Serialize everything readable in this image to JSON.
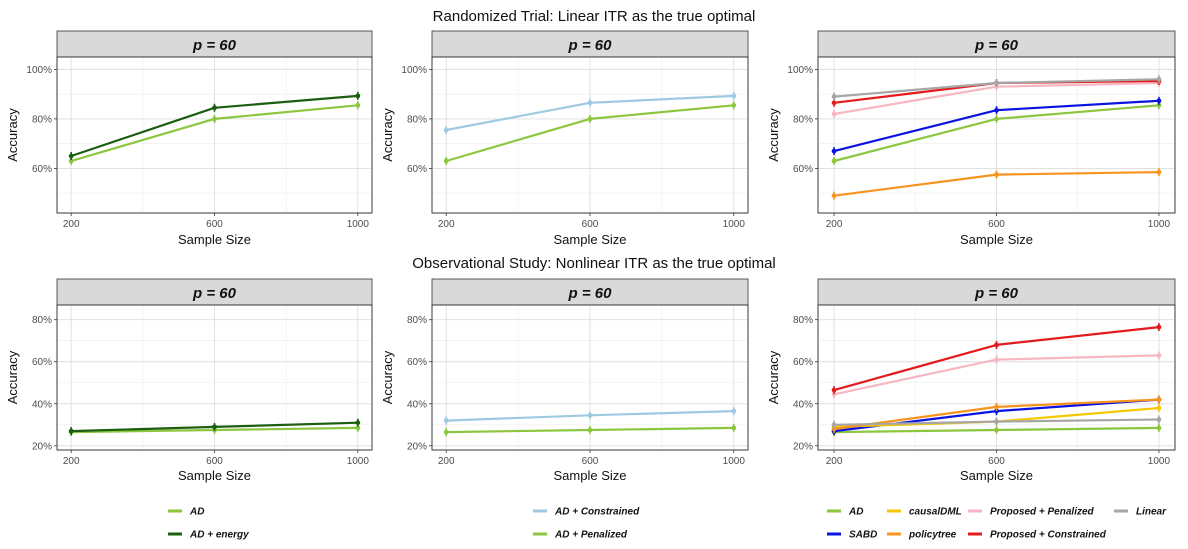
{
  "titles": {
    "top": "Randomized Trial: Linear ITR as the true optimal",
    "bottom": "Observational Study: Nonlinear ITR as the true optimal"
  },
  "colors": {
    "AD": "#8cc63f",
    "AD + energy": "#1b5e10",
    "AD + Constrained": "#9ecae1",
    "AD + Penalized": "#8cc63f",
    "SABD": "#0a14e0",
    "causalDML": "#f5c800",
    "policytree": "#f7941d",
    "Proposed + Penalized": "#f7b6c2",
    "Proposed + Constrained": "#e41a1c",
    "Linear": "#a6a6a6"
  },
  "chart_data": [
    {
      "type": "line",
      "panel": "top-1",
      "strip": "p = 60",
      "xlabel": "Sample Size",
      "ylabel": "Accuracy",
      "x": [
        200,
        600,
        1000
      ],
      "xticks": [
        "200",
        "600",
        "1000"
      ],
      "ylim": [
        0.42,
        1.05
      ],
      "yticks": [
        0.6,
        0.8,
        1.0
      ],
      "ytick_labels": [
        "60%",
        "80%",
        "100%"
      ],
      "series": [
        {
          "name": "AD",
          "values": [
            0.63,
            0.8,
            0.855
          ]
        },
        {
          "name": "AD + energy",
          "values": [
            0.65,
            0.845,
            0.893
          ]
        }
      ]
    },
    {
      "type": "line",
      "panel": "top-2",
      "strip": "p = 60",
      "xlabel": "Sample Size",
      "ylabel": "Accuracy",
      "x": [
        200,
        600,
        1000
      ],
      "xticks": [
        "200",
        "600",
        "1000"
      ],
      "ylim": [
        0.42,
        1.05
      ],
      "yticks": [
        0.6,
        0.8,
        1.0
      ],
      "ytick_labels": [
        "60%",
        "80%",
        "100%"
      ],
      "series": [
        {
          "name": "AD + Constrained",
          "values": [
            0.755,
            0.865,
            0.893
          ]
        },
        {
          "name": "AD + Penalized",
          "values": [
            0.63,
            0.8,
            0.855
          ]
        }
      ]
    },
    {
      "type": "line",
      "panel": "top-3",
      "strip": "p = 60",
      "xlabel": "Sample Size",
      "ylabel": "Accuracy",
      "x": [
        200,
        600,
        1000
      ],
      "xticks": [
        "200",
        "600",
        "1000"
      ],
      "ylim": [
        0.42,
        1.05
      ],
      "yticks": [
        0.6,
        0.8,
        1.0
      ],
      "ytick_labels": [
        "60%",
        "80%",
        "100%"
      ],
      "series": [
        {
          "name": "AD",
          "values": [
            0.63,
            0.8,
            0.855
          ]
        },
        {
          "name": "SABD",
          "values": [
            0.67,
            0.835,
            0.873
          ]
        },
        {
          "name": "policytree",
          "values": [
            0.49,
            0.575,
            0.585
          ]
        },
        {
          "name": "Proposed + Penalized",
          "values": [
            0.82,
            0.93,
            0.945
          ]
        },
        {
          "name": "Proposed + Constrained",
          "values": [
            0.865,
            0.945,
            0.953
          ]
        },
        {
          "name": "Linear",
          "values": [
            0.89,
            0.945,
            0.96
          ]
        }
      ]
    },
    {
      "type": "line",
      "panel": "bottom-1",
      "strip": "p = 60",
      "xlabel": "Sample Size",
      "ylabel": "Accuracy",
      "x": [
        200,
        600,
        1000
      ],
      "xticks": [
        "200",
        "600",
        "1000"
      ],
      "ylim": [
        0.18,
        0.87
      ],
      "yticks": [
        0.2,
        0.4,
        0.6,
        0.8
      ],
      "ytick_labels": [
        "20%",
        "40%",
        "60%",
        "80%"
      ],
      "series": [
        {
          "name": "AD",
          "values": [
            0.265,
            0.275,
            0.285
          ]
        },
        {
          "name": "AD + energy",
          "values": [
            0.27,
            0.29,
            0.31
          ]
        }
      ]
    },
    {
      "type": "line",
      "panel": "bottom-2",
      "strip": "p = 60",
      "xlabel": "Sample Size",
      "ylabel": "Accuracy",
      "x": [
        200,
        600,
        1000
      ],
      "xticks": [
        "200",
        "600",
        "1000"
      ],
      "ylim": [
        0.18,
        0.87
      ],
      "yticks": [
        0.2,
        0.4,
        0.6,
        0.8
      ],
      "ytick_labels": [
        "20%",
        "40%",
        "60%",
        "80%"
      ],
      "series": [
        {
          "name": "AD + Constrained",
          "values": [
            0.32,
            0.345,
            0.365
          ]
        },
        {
          "name": "AD + Penalized",
          "values": [
            0.265,
            0.275,
            0.285
          ]
        }
      ]
    },
    {
      "type": "line",
      "panel": "bottom-3",
      "strip": "p = 60",
      "xlabel": "Sample Size",
      "ylabel": "Accuracy",
      "x": [
        200,
        600,
        1000
      ],
      "xticks": [
        "200",
        "600",
        "1000"
      ],
      "ylim": [
        0.18,
        0.87
      ],
      "yticks": [
        0.2,
        0.4,
        0.6,
        0.8
      ],
      "ytick_labels": [
        "20%",
        "40%",
        "60%",
        "80%"
      ],
      "series": [
        {
          "name": "AD",
          "values": [
            0.265,
            0.275,
            0.285
          ]
        },
        {
          "name": "SABD",
          "values": [
            0.27,
            0.365,
            0.42
          ]
        },
        {
          "name": "causalDML",
          "values": [
            0.29,
            0.315,
            0.38
          ]
        },
        {
          "name": "policytree",
          "values": [
            0.28,
            0.385,
            0.42
          ]
        },
        {
          "name": "Proposed + Penalized",
          "values": [
            0.445,
            0.61,
            0.63
          ]
        },
        {
          "name": "Proposed + Constrained",
          "values": [
            0.465,
            0.68,
            0.765
          ]
        },
        {
          "name": "Linear",
          "values": [
            0.3,
            0.315,
            0.325
          ]
        }
      ]
    }
  ],
  "legends": [
    {
      "entries": [
        "AD",
        "AD + energy"
      ]
    },
    {
      "entries": [
        "AD + Constrained",
        "AD + Penalized"
      ]
    },
    {
      "entries": [
        "AD",
        "causalDML",
        "Proposed + Penalized",
        "Linear",
        "SABD",
        "policytree",
        "Proposed + Constrained"
      ]
    }
  ]
}
